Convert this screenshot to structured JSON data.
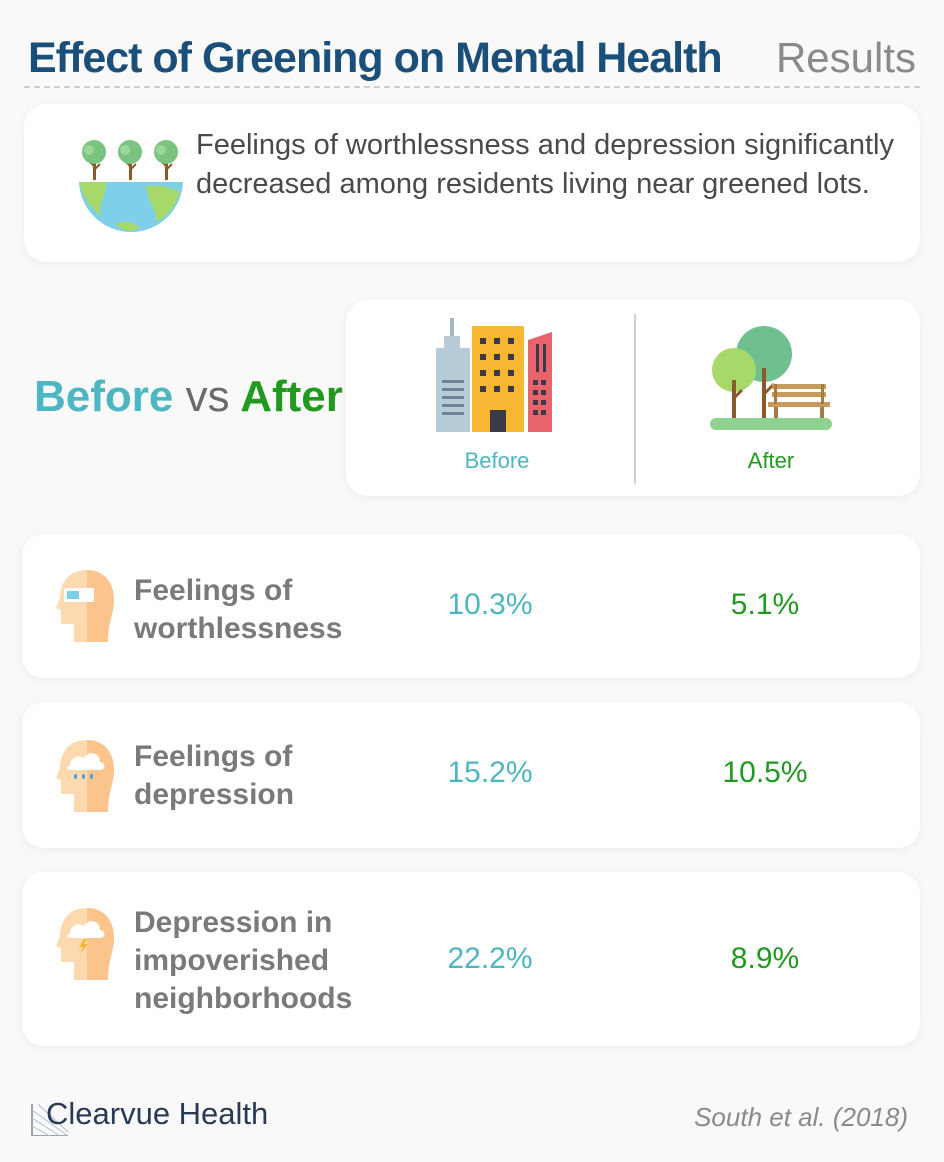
{
  "header": {
    "title": "Effect of Greening on Mental Health",
    "section": "Results"
  },
  "summary": {
    "text": "Feelings of worthlessness and depression significantly decreased among residents living near greened lots."
  },
  "comparison": {
    "before_word": "Before",
    "vs_word": "vs",
    "after_word": "After",
    "before_label": "Before",
    "after_label": "After"
  },
  "rows": [
    {
      "label": "Feelings of worthlessness",
      "before": "10.3%",
      "after": "5.1%",
      "icon": "head-goggles-icon"
    },
    {
      "label": "Feelings of depression",
      "before": "15.2%",
      "after": "10.5%",
      "icon": "head-rain-cloud-icon"
    },
    {
      "label": "Depression in impoverished neighborhoods",
      "before": "22.2%",
      "after": "8.9%",
      "icon": "head-storm-cloud-icon"
    }
  ],
  "footer": {
    "brand": "Clearvue Health",
    "citation": "South et al. (2018)"
  },
  "colors": {
    "title": "#1a4f7a",
    "before": "#4db6c3",
    "after": "#1f9a1f",
    "label": "#7a7a7a"
  }
}
